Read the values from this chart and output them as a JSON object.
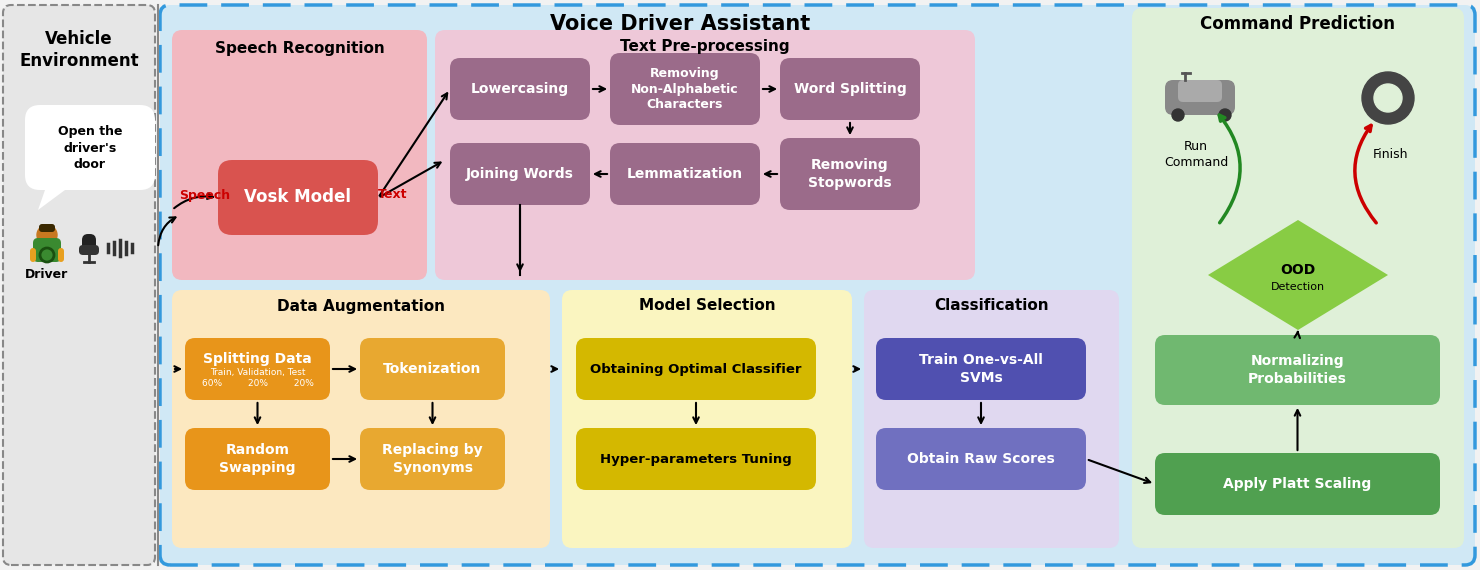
{
  "bg_outer": "#f2f2f2",
  "bg_vehicle": "#e6e6e6",
  "vehicle_title": "Vehicle\nEnvironment",
  "bg_main": "#d0e8f5",
  "main_title": "Voice Driver Assistant",
  "speech_rec_bg": "#f2b8c0",
  "speech_rec_title": "Speech Recognition",
  "vosk_color": "#d9534f",
  "text_pre_bg": "#eec8d8",
  "text_pre_title": "Text Pre-processing",
  "tp_box_color": "#9b6b8a",
  "data_aug_bg": "#fce8c0",
  "data_aug_title": "Data Augmentation",
  "da_box1_color": "#e8951a",
  "da_box2_color": "#e8a830",
  "model_sel_bg": "#faf5c0",
  "model_sel_title": "Model Selection",
  "ms_box_color": "#d4b800",
  "classif_bg": "#e0d8f0",
  "classif_title": "Classification",
  "cl_box1_color": "#5050b0",
  "cl_box2_color": "#7070c0",
  "cmd_pred_bg": "#dff0d8",
  "cmd_pred_title": "Command Prediction",
  "norm_box_color": "#70b870",
  "platt_box_color": "#50a050",
  "ood_color": "#88cc44",
  "speech_label_color": "#cc0000",
  "text_label_color": "#cc0000"
}
